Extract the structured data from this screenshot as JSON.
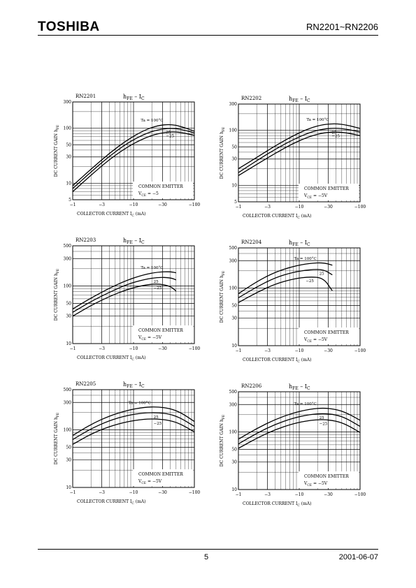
{
  "header": {
    "brand": "TOSHIBA",
    "part_range": "RN2201~RN2206"
  },
  "footer": {
    "page": "5",
    "date": "2001-06-07"
  },
  "chart_data": [
    {
      "type": "line",
      "part": "RN2201",
      "title_main": "h",
      "title_main_sub": "FE",
      "title_sep": " – I",
      "title_sep_sub": "C",
      "ylabel": "DC CURRENT GAIN  h",
      "ylabel_sub": "FE",
      "xlabel": "COLLECTOR CURRENT  I",
      "xlabel_sub": "C",
      "xlabel_unit": " (mA)",
      "x_scale": "log",
      "y_scale": "log",
      "xlim": [
        -1,
        -100
      ],
      "ylim": [
        5,
        300
      ],
      "xticks": [
        -1,
        -3,
        -10,
        -30,
        -100
      ],
      "xtick_labels": [
        "−1",
        "−3",
        "−10",
        "−30",
        "−100"
      ],
      "yticks": [
        5,
        10,
        30,
        50,
        100,
        300
      ],
      "ytick_labels": [
        "5",
        "10",
        "30",
        "50",
        "100",
        "300"
      ],
      "note1": "COMMON EMITTER",
      "note2_main": "V",
      "note2_sub": "CE",
      "note2_val": " = −5",
      "series": [
        {
          "name": "Ta = 100°C",
          "x": [
            -1,
            -2,
            -4,
            -8,
            -15,
            -25,
            -40,
            -60,
            -100
          ],
          "y": [
            9,
            18,
            35,
            62,
            92,
            112,
            118,
            108,
            88
          ]
        },
        {
          "name": "25",
          "x": [
            -1,
            -2,
            -4,
            -8,
            -15,
            -25,
            -40,
            -60,
            -100
          ],
          "y": [
            8,
            16,
            31,
            54,
            78,
            94,
            100,
            96,
            82
          ]
        },
        {
          "name": "−25",
          "x": [
            -1,
            -2,
            -4,
            -8,
            -15,
            -25,
            -40,
            -60,
            -100
          ],
          "y": [
            7,
            14,
            27,
            46,
            66,
            80,
            86,
            84,
            74
          ]
        }
      ]
    },
    {
      "type": "line",
      "part": "RN2202",
      "title_main": "h",
      "title_main_sub": "FE",
      "title_sep": " – I",
      "title_sep_sub": "C",
      "ylabel": "DC CURRENT GAIN  h",
      "ylabel_sub": "FE",
      "xlabel": "COLLECTOR CURRENT  I",
      "xlabel_sub": "C",
      "xlabel_unit": " (mA)",
      "x_scale": "log",
      "y_scale": "log",
      "xlim": [
        -1,
        -100
      ],
      "ylim": [
        5,
        300
      ],
      "xticks": [
        -1,
        -3,
        -10,
        -30,
        -100
      ],
      "xtick_labels": [
        "−1",
        "−3",
        "−10",
        "−30",
        "−100"
      ],
      "yticks": [
        5,
        10,
        30,
        50,
        100,
        300
      ],
      "ytick_labels": [
        "5",
        "10",
        "30",
        "50",
        "100",
        "300"
      ],
      "note1": "COMMON EMITTER",
      "note2_main": "V",
      "note2_sub": "CE",
      "note2_val": " = −5V",
      "series": [
        {
          "name": "Ta = 100°C",
          "x": [
            -1,
            -2,
            -4,
            -8,
            -15,
            -25,
            -40,
            -60,
            -100
          ],
          "y": [
            20,
            32,
            52,
            80,
            110,
            128,
            132,
            125,
            108
          ]
        },
        {
          "name": "25",
          "x": [
            -1,
            -2,
            -4,
            -8,
            -15,
            -25,
            -40,
            -60,
            -100
          ],
          "y": [
            17,
            28,
            45,
            68,
            92,
            106,
            110,
            105,
            93
          ]
        },
        {
          "name": "−25",
          "x": [
            -1,
            -2,
            -4,
            -8,
            -15,
            -25,
            -40,
            -60,
            -100
          ],
          "y": [
            15,
            24,
            38,
            58,
            78,
            90,
            94,
            90,
            80
          ]
        }
      ]
    },
    {
      "type": "line",
      "part": "RN2203",
      "title_main": "h",
      "title_main_sub": "FE",
      "title_sep": " – I",
      "title_sep_sub": "C",
      "ylabel": "DC CURRENT GAIN  h",
      "ylabel_sub": "FE",
      "xlabel": "COLLECTOR CURRENT  I",
      "xlabel_sub": "C",
      "xlabel_unit": " (mA)",
      "x_scale": "log",
      "y_scale": "log",
      "xlim": [
        -1,
        -100
      ],
      "ylim": [
        10,
        500
      ],
      "xticks": [
        -1,
        -3,
        -10,
        -30,
        -100
      ],
      "xtick_labels": [
        "−1",
        "−3",
        "−10",
        "−30",
        "−100"
      ],
      "yticks": [
        10,
        30,
        50,
        100,
        300,
        500
      ],
      "ytick_labels": [
        "10",
        "30",
        "50",
        "100",
        "300",
        "500"
      ],
      "note1": "COMMON EMITTER",
      "note2_main": "V",
      "note2_sub": "CE",
      "note2_val": " = −5V",
      "series": [
        {
          "name": "Ta = 100°C",
          "x": [
            -1,
            -2,
            -4,
            -8,
            -15,
            -25,
            -40,
            -50
          ],
          "y": [
            40,
            62,
            92,
            128,
            158,
            175,
            178,
            170
          ]
        },
        {
          "name": "25",
          "x": [
            -1,
            -2,
            -4,
            -8,
            -15,
            -25,
            -40,
            -50
          ],
          "y": [
            35,
            54,
            78,
            108,
            130,
            142,
            140,
            128
          ]
        },
        {
          "name": "−25",
          "x": [
            -1,
            -2,
            -4,
            -8,
            -15,
            -25,
            -40,
            -50
          ],
          "y": [
            30,
            46,
            66,
            88,
            104,
            110,
            100,
            82
          ]
        }
      ]
    },
    {
      "type": "line",
      "part": "RN2204",
      "title_main": "h",
      "title_main_sub": "FE",
      "title_sep": " – I",
      "title_sep_sub": "C",
      "ylabel": "DC CURRENT GAIN  h",
      "ylabel_sub": "FE",
      "xlabel": "COLLECTOR CURRENT  I",
      "xlabel_sub": "C",
      "xlabel_unit": " (mA)",
      "x_scale": "log",
      "y_scale": "log",
      "xlim": [
        -1,
        -100
      ],
      "ylim": [
        10,
        500
      ],
      "xticks": [
        -1,
        -3,
        -10,
        -30,
        -100
      ],
      "xtick_labels": [
        "−1",
        "−3",
        "−10",
        "−30",
        "−100"
      ],
      "yticks": [
        10,
        30,
        50,
        100,
        300,
        500
      ],
      "ytick_labels": [
        "10",
        "30",
        "50",
        "100",
        "300",
        "500"
      ],
      "note1": "COMMON EMITTER",
      "note2_main": "V",
      "note2_sub": "CE",
      "note2_val": " = −5V",
      "series": [
        {
          "name": "Ta = 100°C",
          "x": [
            -1,
            -2,
            -4,
            -8,
            -15,
            -25,
            -35
          ],
          "y": [
            80,
            130,
            190,
            240,
            270,
            278,
            250
          ]
        },
        {
          "name": "25",
          "x": [
            -1,
            -2,
            -4,
            -8,
            -15,
            -25,
            -35
          ],
          "y": [
            68,
            105,
            152,
            190,
            210,
            212,
            170
          ]
        },
        {
          "name": "−25",
          "x": [
            -1,
            -2,
            -4,
            -8,
            -15,
            -25,
            -35
          ],
          "y": [
            56,
            84,
            118,
            145,
            158,
            150,
            90
          ]
        }
      ]
    },
    {
      "type": "line",
      "part": "RN2205",
      "title_main": "h",
      "title_main_sub": "FE",
      "title_sep": " – I",
      "title_sep_sub": "C",
      "ylabel": "DC CURRENT GAIN  h",
      "ylabel_sub": "FE",
      "xlabel": "COLLECTOR CURRENT  I",
      "xlabel_sub": "C",
      "xlabel_unit": " (mA)",
      "x_scale": "log",
      "y_scale": "log",
      "xlim": [
        -1,
        -100
      ],
      "ylim": [
        10,
        500
      ],
      "xticks": [
        -1,
        -3,
        -10,
        -30,
        -100
      ],
      "xtick_labels": [
        "−1",
        "−3",
        "−10",
        "−30",
        "−100"
      ],
      "yticks": [
        10,
        30,
        50,
        100,
        300,
        500
      ],
      "ytick_labels": [
        "10",
        "30",
        "50",
        "100",
        "300",
        "500"
      ],
      "note1": "COMMON EMITTER",
      "note2_main": "V",
      "note2_sub": "CE",
      "note2_val": " = −5V",
      "series": [
        {
          "name": "Ta = 100°C",
          "x": [
            -1,
            -2,
            -4,
            -8,
            -15,
            -25,
            -40,
            -60,
            -100
          ],
          "y": [
            80,
            125,
            175,
            220,
            248,
            252,
            235,
            200,
            140
          ]
        },
        {
          "name": "25",
          "x": [
            -1,
            -2,
            -4,
            -8,
            -15,
            -25,
            -40,
            -60,
            -100
          ],
          "y": [
            68,
            105,
            145,
            180,
            198,
            200,
            188,
            160,
            115
          ]
        },
        {
          "name": "−25",
          "x": [
            -1,
            -2,
            -4,
            -8,
            -15,
            -25,
            -40,
            -60,
            -100
          ],
          "y": [
            56,
            85,
            115,
            140,
            154,
            155,
            146,
            126,
            92
          ]
        }
      ]
    },
    {
      "type": "line",
      "part": "RN2206",
      "title_main": "h",
      "title_main_sub": "FE",
      "title_sep": " – I",
      "title_sep_sub": "C",
      "ylabel": "DC CURRENT GAIN  h",
      "ylabel_sub": "FE",
      "xlabel": "COLLECTOR CURRENT  I",
      "xlabel_sub": "C",
      "xlabel_unit": " (mA)",
      "x_scale": "log",
      "y_scale": "log",
      "xlim": [
        -1,
        -100
      ],
      "ylim": [
        10,
        500
      ],
      "xticks": [
        -1,
        -3,
        -10,
        -30,
        -100
      ],
      "xtick_labels": [
        "−1",
        "−3",
        "−10",
        "−30",
        "−100"
      ],
      "yticks": [
        10,
        30,
        50,
        100,
        300,
        500
      ],
      "ytick_labels": [
        "10",
        "30",
        "50",
        "100",
        "300",
        "500"
      ],
      "note1": "COMMON EMITTER",
      "note2_main": "V",
      "note2_sub": "CE",
      "note2_val": " = −5V",
      "series": [
        {
          "name": "Ta = 100°C",
          "x": [
            -1,
            -2,
            -4,
            -8,
            -15,
            -25,
            -40,
            -60,
            -100
          ],
          "y": [
            75,
            115,
            165,
            215,
            250,
            262,
            248,
            215,
            160
          ]
        },
        {
          "name": "25",
          "x": [
            -1,
            -2,
            -4,
            -8,
            -15,
            -25,
            -40,
            -60,
            -100
          ],
          "y": [
            62,
            95,
            136,
            175,
            202,
            210,
            200,
            172,
            125
          ]
        },
        {
          "name": "−25",
          "x": [
            -1,
            -2,
            -4,
            -8,
            -15,
            -25,
            -40,
            -60,
            -100
          ],
          "y": [
            52,
            78,
            110,
            140,
            160,
            165,
            156,
            134,
            98
          ]
        }
      ]
    }
  ]
}
